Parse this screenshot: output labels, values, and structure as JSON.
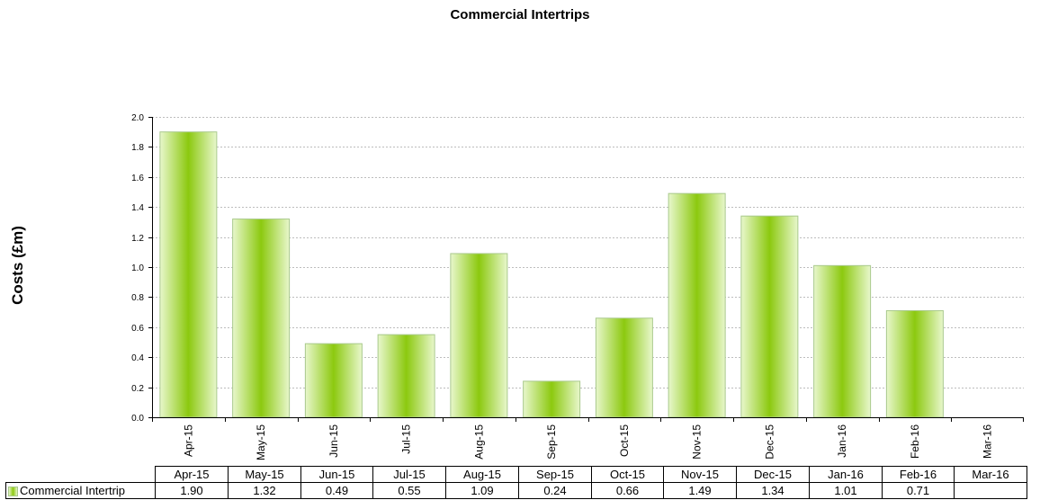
{
  "chart_data": {
    "type": "bar",
    "title": "Commercial Intertrips",
    "ylabel": "Costs (£m)",
    "xlabel": "",
    "ylim": [
      0,
      2.0
    ],
    "yticks": [
      "0.0",
      "0.2",
      "0.4",
      "0.6",
      "0.8",
      "1.0",
      "1.2",
      "1.4",
      "1.6",
      "1.8",
      "2.0"
    ],
    "grid": true,
    "categories": [
      "Apr-15",
      "May-15",
      "Jun-15",
      "Jul-15",
      "Aug-15",
      "Sep-15",
      "Oct-15",
      "Nov-15",
      "Dec-15",
      "Jan-16",
      "Feb-16",
      "Mar-16"
    ],
    "series": [
      {
        "name": "Commercial Intertrip",
        "values": [
          1.9,
          1.32,
          0.49,
          0.55,
          1.09,
          0.24,
          0.66,
          1.49,
          1.34,
          1.01,
          0.71,
          null
        ],
        "labels": [
          "1.90",
          "1.32",
          "0.49",
          "0.55",
          "1.09",
          "0.24",
          "0.66",
          "1.49",
          "1.34",
          "1.01",
          "0.71",
          ""
        ]
      }
    ],
    "colors": {
      "bar_center": "#8cc90f",
      "bar_edge": "#e8f7cc",
      "bar_border": "#a9c98c",
      "grid": "#bdbdbd"
    }
  }
}
